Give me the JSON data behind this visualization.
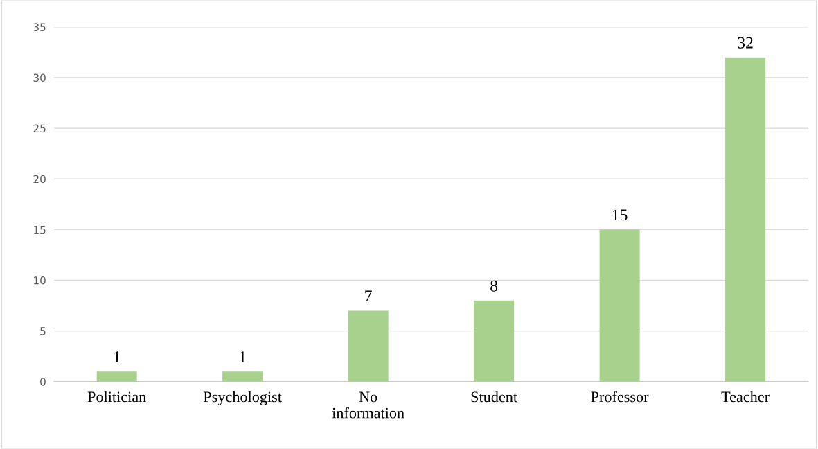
{
  "chart_data": {
    "type": "bar",
    "categories": [
      "Politician",
      "Psychologist",
      "No\ninformation",
      "Student",
      "Professor",
      "Teacher"
    ],
    "values": [
      1,
      1,
      7,
      8,
      15,
      32
    ],
    "color": "#a9d18e",
    "ylim": [
      0,
      35
    ],
    "yticks": [
      0,
      5,
      10,
      15,
      20,
      25,
      30,
      35
    ],
    "grid": "y",
    "data_labels": true
  }
}
